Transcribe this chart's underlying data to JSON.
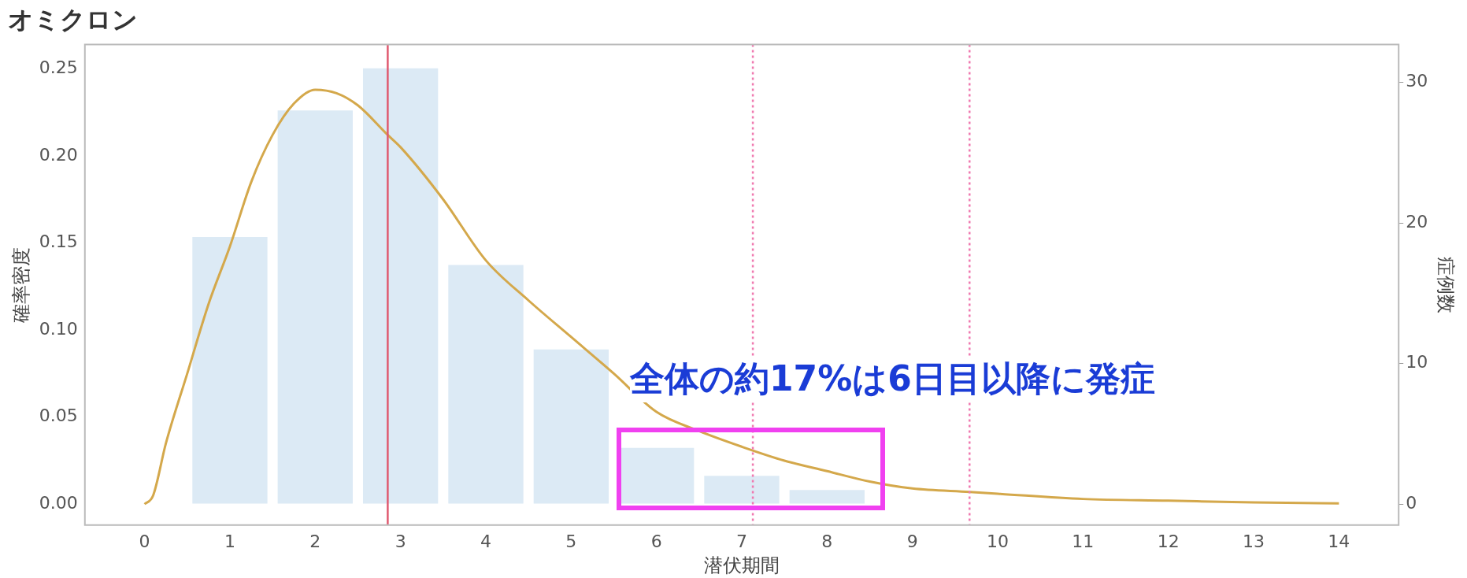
{
  "chart_data": {
    "type": "bar",
    "title": "オミクロン",
    "xlabel": "潜伏期間",
    "ylabel": "確率密度",
    "y2label": "症例数",
    "series": [
      {
        "axis": "y2",
        "color": "#dceaf5",
        "x": [
          1,
          2,
          3,
          4,
          5,
          6,
          7,
          8
        ],
        "values": [
          19,
          28,
          31,
          17,
          11,
          4,
          2,
          1
        ]
      },
      {
        "type": "line",
        "color": "#d4a84b",
        "x": [
          0,
          0.1,
          0.25,
          0.5,
          0.75,
          1,
          1.25,
          1.5,
          1.75,
          2,
          2.25,
          2.5,
          2.85,
          3,
          3.5,
          4,
          4.5,
          5,
          5.5,
          6,
          6.5,
          7,
          7.5,
          8,
          8.5,
          9,
          9.67,
          10,
          11,
          12,
          13,
          14
        ],
        "values": [
          0,
          0.005,
          0.035,
          0.075,
          0.115,
          0.148,
          0.185,
          0.212,
          0.23,
          0.238,
          0.236,
          0.229,
          0.212,
          0.205,
          0.175,
          0.14,
          0.117,
          0.096,
          0.075,
          0.053,
          0.042,
          0.033,
          0.025,
          0.019,
          0.013,
          0.009,
          0.007,
          0.006,
          0.003,
          0.002,
          0.001,
          0.0005
        ]
      }
    ],
    "xlim": [
      -0.7,
      14.7
    ],
    "xticks": [
      0,
      1,
      2,
      3,
      4,
      5,
      6,
      7,
      8,
      9,
      10,
      11,
      12,
      13,
      14
    ],
    "ylim": [
      -0.012,
      0.264
    ],
    "yticks": [
      {
        "value": 0,
        "label": "0.00"
      },
      {
        "value": 0.05,
        "label": "0.05"
      },
      {
        "value": 0.1,
        "label": "0.10"
      },
      {
        "value": 0.15,
        "label": "0.15"
      },
      {
        "value": 0.2,
        "label": "0.20"
      },
      {
        "value": 0.25,
        "label": "0.25"
      }
    ],
    "y2lim": [
      -1.5,
      32.7
    ],
    "y2ticks": [
      0,
      10,
      20,
      30
    ],
    "ref_lines": [
      {
        "axis": "x",
        "value": 2.85,
        "color": "#e05a70",
        "line_style": "solid"
      },
      {
        "axis": "x",
        "value": 7.13,
        "color": "#f07ab0",
        "line_style": "dotted"
      },
      {
        "axis": "x",
        "value": 9.67,
        "color": "#f07ab0",
        "line_style": "dotted"
      }
    ],
    "annotations": [
      "全体の約17%は6日目以降に発症"
    ],
    "grid": false,
    "legend": false,
    "marker": "none",
    "line_style": "solid"
  }
}
